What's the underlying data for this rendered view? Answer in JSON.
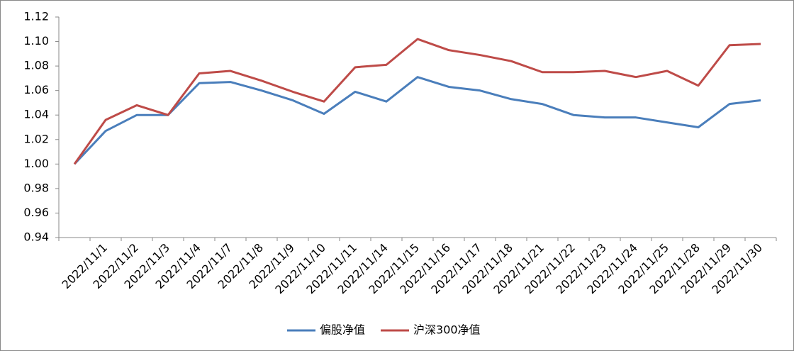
{
  "chart_data": {
    "type": "line",
    "categories": [
      null,
      "2022/11/1",
      "2022/11/2",
      "2022/11/3",
      "2022/11/4",
      "2022/11/7",
      "2022/11/8",
      "2022/11/9",
      "2022/11/10",
      "2022/11/11",
      "2022/11/14",
      "2022/11/15",
      "2022/11/16",
      "2022/11/17",
      "2022/11/18",
      "2022/11/21",
      "2022/11/22",
      "2022/11/23",
      "2022/11/24",
      "2022/11/25",
      "2022/11/28",
      "2022/11/29",
      "2022/11/30"
    ],
    "series": [
      {
        "name": "偏股净值",
        "color": "#4a7ebb",
        "values": [
          1.0,
          1.027,
          1.04,
          1.04,
          1.066,
          1.067,
          1.06,
          1.052,
          1.041,
          1.059,
          1.051,
          1.071,
          1.063,
          1.06,
          1.053,
          1.049,
          1.04,
          1.038,
          1.038,
          1.034,
          1.03,
          1.049,
          1.052
        ]
      },
      {
        "name": "沪深300净值",
        "color": "#be4b48",
        "values": [
          1.0,
          1.036,
          1.048,
          1.04,
          1.074,
          1.076,
          1.068,
          1.059,
          1.051,
          1.079,
          1.081,
          1.102,
          1.093,
          1.089,
          1.084,
          1.075,
          1.075,
          1.076,
          1.071,
          1.076,
          1.064,
          1.097,
          1.098
        ]
      }
    ],
    "ylim": [
      0.94,
      1.12
    ],
    "yticks": [
      {
        "value": 0.94,
        "label": "0.94"
      },
      {
        "value": 0.96,
        "label": "0.96"
      },
      {
        "value": 0.98,
        "label": "0.98"
      },
      {
        "value": 1.0,
        "label": "1.00"
      },
      {
        "value": 1.02,
        "label": "1.02"
      },
      {
        "value": 1.04,
        "label": "1.04"
      },
      {
        "value": 1.06,
        "label": "1.06"
      },
      {
        "value": 1.08,
        "label": "1.08"
      },
      {
        "value": 1.1,
        "label": "1.10"
      },
      {
        "value": 1.12,
        "label": "1.12"
      }
    ],
    "grid": false,
    "legend": "bottom"
  }
}
